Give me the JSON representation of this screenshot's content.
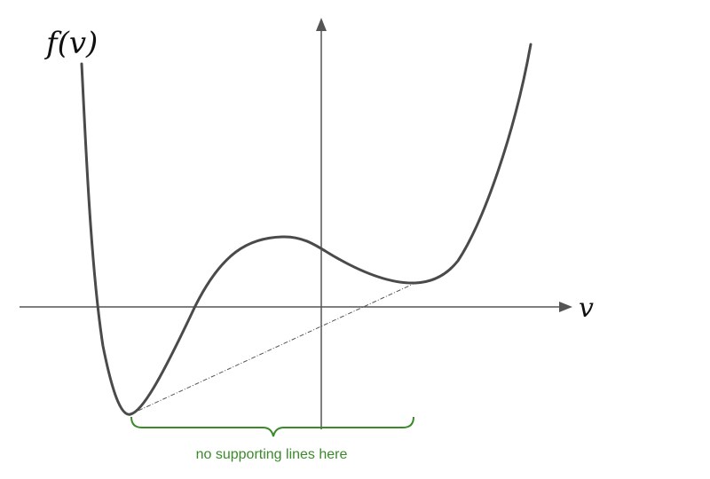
{
  "labels": {
    "y_axis": "f(v)",
    "x_axis": "v",
    "annotation": "no supporting lines here"
  },
  "colors": {
    "axis": "#555555",
    "curve": "#4a4a4a",
    "dashed_line": "#555555",
    "annotation": "#3a8a2a",
    "background": "#ffffff"
  },
  "elements": {
    "y_axis_arrow": "arrow-up",
    "x_axis_arrow": "arrow-right",
    "brace": "curly-brace-down"
  }
}
